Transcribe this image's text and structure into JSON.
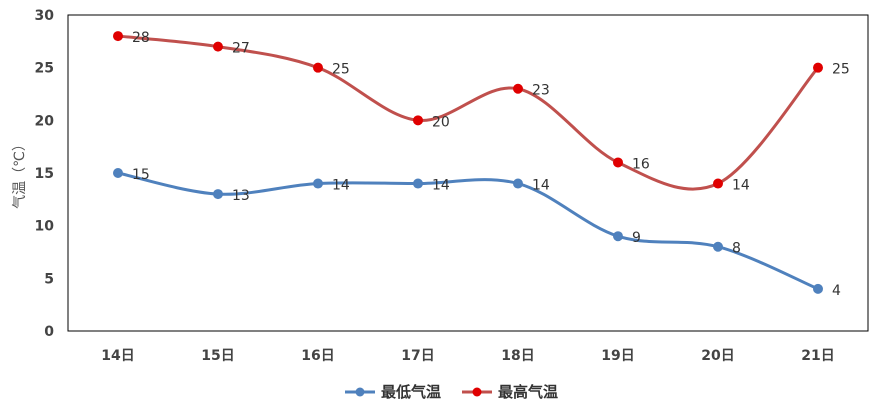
{
  "chart_data": {
    "type": "line",
    "categories": [
      "14日",
      "15日",
      "16日",
      "17日",
      "18日",
      "19日",
      "20日",
      "21日"
    ],
    "series": [
      {
        "name": "最低气温",
        "values": [
          15,
          13,
          14,
          14,
          14,
          9,
          8,
          4
        ],
        "color": "#4F81BD"
      },
      {
        "name": "最高气温",
        "values": [
          28,
          27,
          25,
          20,
          23,
          16,
          14,
          25
        ],
        "color": "#C0504D",
        "marker_color": "#E00000"
      }
    ],
    "ylabel": "气温（℃）",
    "ylim": [
      0,
      30
    ],
    "yticks": [
      0,
      5,
      10,
      15,
      20,
      25,
      30
    ],
    "smooth": true,
    "data_labels": true,
    "legend_position": "bottom",
    "grid": false
  }
}
